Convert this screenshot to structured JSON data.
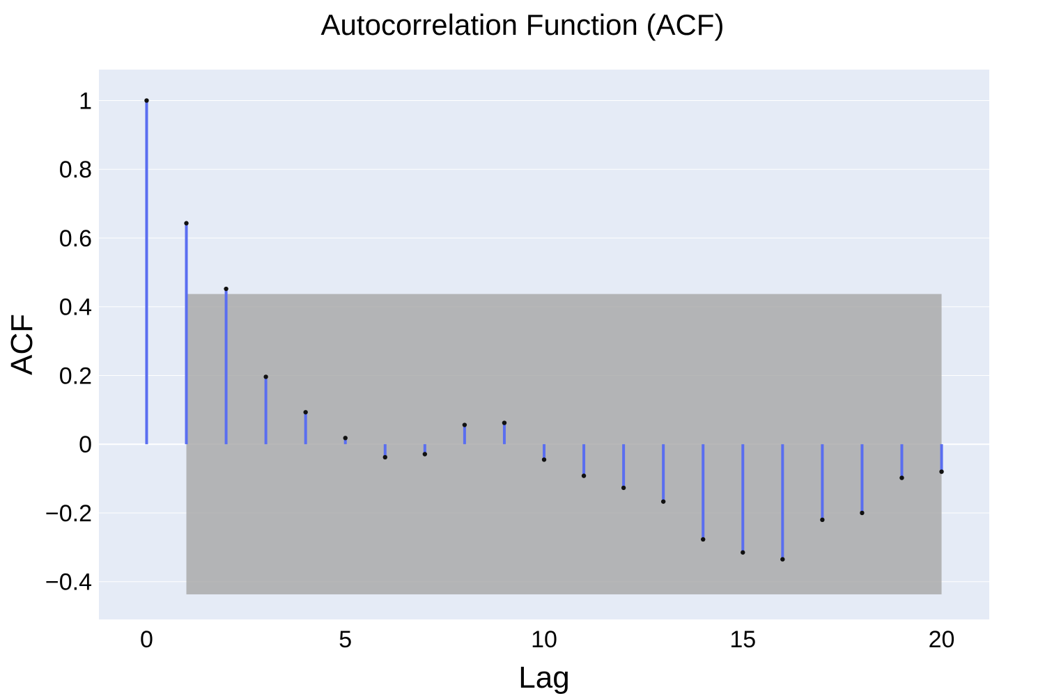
{
  "chart_data": {
    "type": "bar",
    "title": "Autocorrelation Function (ACF)",
    "xlabel": "Lag",
    "ylabel": "ACF",
    "xlim": [
      -1.2,
      21.2
    ],
    "ylim": [
      -0.51,
      1.09
    ],
    "x_ticks": [
      0,
      5,
      10,
      15,
      20
    ],
    "x_tick_labels": [
      "0",
      "5",
      "10",
      "15",
      "20"
    ],
    "y_ticks": [
      -0.4,
      -0.2,
      0,
      0.2,
      0.4,
      0.6,
      0.8,
      1
    ],
    "y_tick_labels": [
      "−0.4",
      "−0.2",
      "0",
      "0.2",
      "0.4",
      "0.6",
      "0.8",
      "1"
    ],
    "grid": true,
    "confidence_band": {
      "x": [
        1,
        20
      ],
      "upper": 0.437,
      "lower": -0.437
    },
    "lags": [
      0,
      1,
      2,
      3,
      4,
      5,
      6,
      7,
      8,
      9,
      10,
      11,
      12,
      13,
      14,
      15,
      16,
      17,
      18,
      19,
      20
    ],
    "values": [
      1.0,
      0.643,
      0.452,
      0.196,
      0.093,
      0.018,
      -0.038,
      -0.029,
      0.056,
      0.062,
      -0.045,
      -0.092,
      -0.127,
      -0.167,
      -0.277,
      -0.315,
      -0.335,
      -0.22,
      -0.2,
      -0.098,
      -0.08
    ],
    "colors": {
      "stem": "#5a6ef0",
      "marker": "#111111",
      "band": "#a6a6a6",
      "plot_bg": "#e5ebf6",
      "grid": "#ffffff"
    }
  }
}
